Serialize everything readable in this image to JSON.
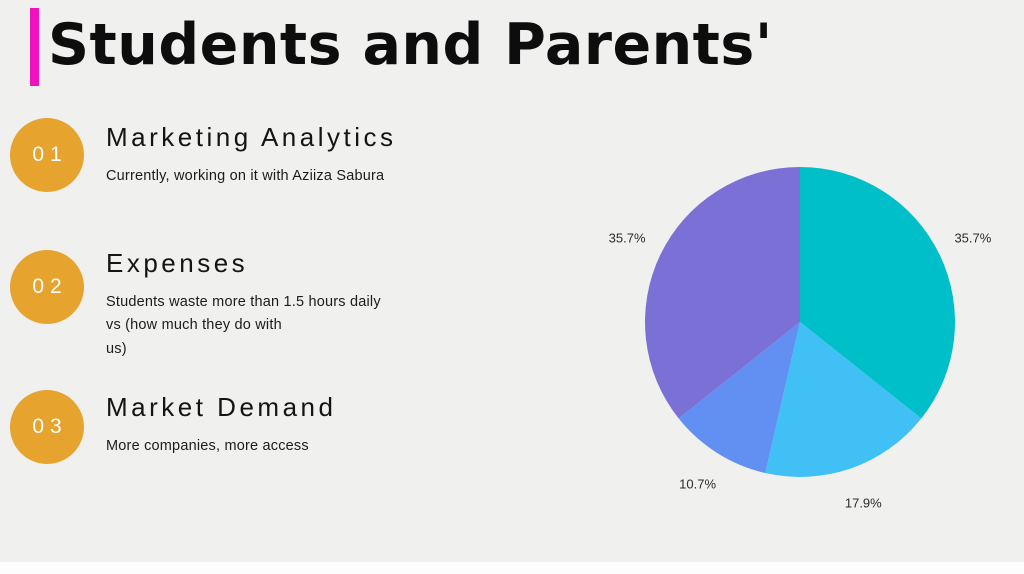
{
  "slide": {
    "title": "Students and Parents'",
    "accent_color": "#ee13be",
    "badge_color": "#e6a32d",
    "items": [
      {
        "number": "01",
        "title": "Marketing Analytics",
        "description": "Currently, working on it with Aziiza Sabura"
      },
      {
        "number": "02",
        "title": "Expenses",
        "description": "Students waste more than 1.5 hours daily\nvs (how much they do with\nus)"
      },
      {
        "number": "03",
        "title": "Market Demand",
        "description": "More companies, more access"
      }
    ]
  },
  "chart_data": {
    "type": "pie",
    "title": "",
    "labels": [
      "35.7%",
      "17.9%",
      "10.7%",
      "35.7%"
    ],
    "values": [
      35.7,
      17.9,
      10.7,
      35.7
    ],
    "colors": [
      "#00bfc9",
      "#41c0f5",
      "#6290f2",
      "#7b70d6"
    ],
    "start_angle_deg": 0,
    "direction": "clockwise",
    "legend": "none"
  }
}
